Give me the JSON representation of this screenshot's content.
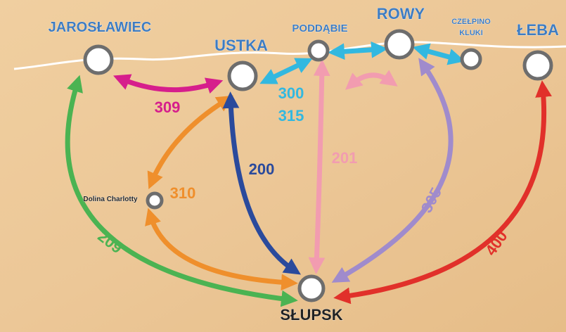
{
  "stations": [
    {
      "label": "JAROSŁAWIEC"
    },
    {
      "label": "USTKA"
    },
    {
      "label": "PODDĄBIE"
    },
    {
      "label": "ROWY"
    },
    {
      "label": "CZEŁPINO"
    },
    {
      "label": "KLUKI"
    },
    {
      "label": "ŁEBA"
    },
    {
      "label": "Dolina Charlotty"
    },
    {
      "label": "SŁUPSK"
    }
  ],
  "routes": [
    {
      "label": "309"
    },
    {
      "label": "310"
    },
    {
      "label": "200"
    },
    {
      "label": "201"
    },
    {
      "label": "305"
    },
    {
      "label": "400"
    },
    {
      "label": "209"
    },
    {
      "label": "300"
    },
    {
      "label": "315"
    }
  ]
}
